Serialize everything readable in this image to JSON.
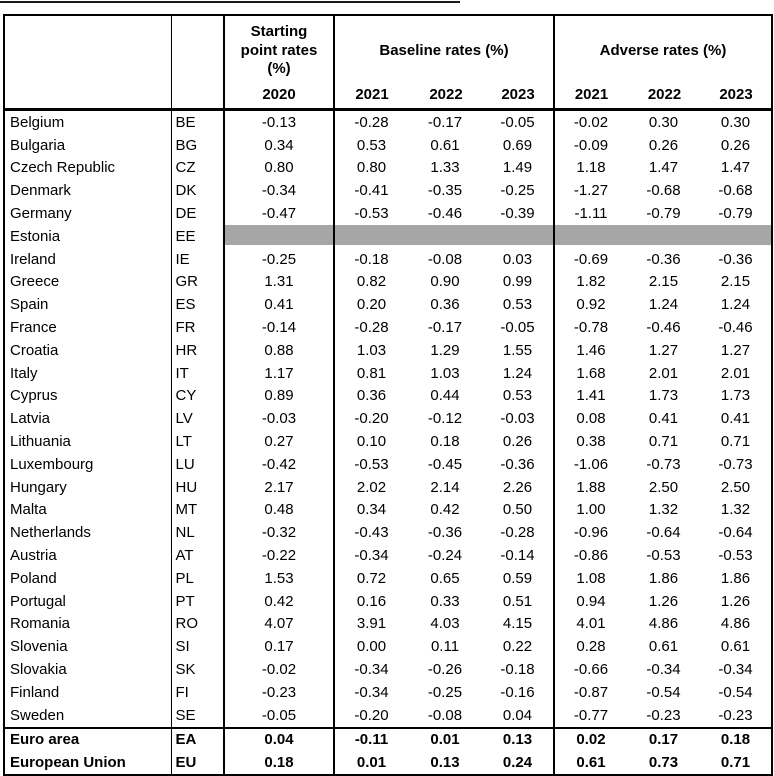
{
  "accent_colors": {
    "border": "#000000",
    "missing_band": "#a6a6a6",
    "background": "#ffffff"
  },
  "table": {
    "header": {
      "country_col": "",
      "code_col": "",
      "groups": [
        {
          "label": "Starting point rates (%)",
          "years": [
            "2020"
          ]
        },
        {
          "label": "Baseline rates (%)",
          "years": [
            "2021",
            "2022",
            "2023"
          ]
        },
        {
          "label": "Adverse rates (%)",
          "years": [
            "2021",
            "2022",
            "2023"
          ]
        }
      ]
    },
    "rows": [
      {
        "country": "Belgium",
        "code": "BE",
        "values": [
          "-0.13",
          "-0.28",
          "-0.17",
          "-0.05",
          "-0.02",
          "0.30",
          "0.30"
        ]
      },
      {
        "country": "Bulgaria",
        "code": "BG",
        "values": [
          "0.34",
          "0.53",
          "0.61",
          "0.69",
          "-0.09",
          "0.26",
          "0.26"
        ]
      },
      {
        "country": "Czech Republic",
        "code": "CZ",
        "values": [
          "0.80",
          "0.80",
          "1.33",
          "1.49",
          "1.18",
          "1.47",
          "1.47"
        ]
      },
      {
        "country": "Denmark",
        "code": "DK",
        "values": [
          "-0.34",
          "-0.41",
          "-0.35",
          "-0.25",
          "-1.27",
          "-0.68",
          "-0.68"
        ]
      },
      {
        "country": "Germany",
        "code": "DE",
        "values": [
          "-0.47",
          "-0.53",
          "-0.46",
          "-0.39",
          "-1.11",
          "-0.79",
          "-0.79"
        ]
      },
      {
        "country": "Estonia",
        "code": "EE",
        "values": [
          "",
          "",
          "",
          "",
          "",
          "",
          ""
        ],
        "missing": true
      },
      {
        "country": "Ireland",
        "code": "IE",
        "values": [
          "-0.25",
          "-0.18",
          "-0.08",
          "0.03",
          "-0.69",
          "-0.36",
          "-0.36"
        ]
      },
      {
        "country": "Greece",
        "code": "GR",
        "values": [
          "1.31",
          "0.82",
          "0.90",
          "0.99",
          "1.82",
          "2.15",
          "2.15"
        ]
      },
      {
        "country": "Spain",
        "code": "ES",
        "values": [
          "0.41",
          "0.20",
          "0.36",
          "0.53",
          "0.92",
          "1.24",
          "1.24"
        ]
      },
      {
        "country": "France",
        "code": "FR",
        "values": [
          "-0.14",
          "-0.28",
          "-0.17",
          "-0.05",
          "-0.78",
          "-0.46",
          "-0.46"
        ]
      },
      {
        "country": "Croatia",
        "code": "HR",
        "values": [
          "0.88",
          "1.03",
          "1.29",
          "1.55",
          "1.46",
          "1.27",
          "1.27"
        ]
      },
      {
        "country": "Italy",
        "code": "IT",
        "values": [
          "1.17",
          "0.81",
          "1.03",
          "1.24",
          "1.68",
          "2.01",
          "2.01"
        ]
      },
      {
        "country": "Cyprus",
        "code": "CY",
        "values": [
          "0.89",
          "0.36",
          "0.44",
          "0.53",
          "1.41",
          "1.73",
          "1.73"
        ]
      },
      {
        "country": "Latvia",
        "code": "LV",
        "values": [
          "-0.03",
          "-0.20",
          "-0.12",
          "-0.03",
          "0.08",
          "0.41",
          "0.41"
        ]
      },
      {
        "country": "Lithuania",
        "code": "LT",
        "values": [
          "0.27",
          "0.10",
          "0.18",
          "0.26",
          "0.38",
          "0.71",
          "0.71"
        ]
      },
      {
        "country": "Luxembourg",
        "code": "LU",
        "values": [
          "-0.42",
          "-0.53",
          "-0.45",
          "-0.36",
          "-1.06",
          "-0.73",
          "-0.73"
        ]
      },
      {
        "country": "Hungary",
        "code": "HU",
        "values": [
          "2.17",
          "2.02",
          "2.14",
          "2.26",
          "1.88",
          "2.50",
          "2.50"
        ]
      },
      {
        "country": "Malta",
        "code": "MT",
        "values": [
          "0.48",
          "0.34",
          "0.42",
          "0.50",
          "1.00",
          "1.32",
          "1.32"
        ]
      },
      {
        "country": "Netherlands",
        "code": "NL",
        "values": [
          "-0.32",
          "-0.43",
          "-0.36",
          "-0.28",
          "-0.96",
          "-0.64",
          "-0.64"
        ]
      },
      {
        "country": "Austria",
        "code": "AT",
        "values": [
          "-0.22",
          "-0.34",
          "-0.24",
          "-0.14",
          "-0.86",
          "-0.53",
          "-0.53"
        ]
      },
      {
        "country": "Poland",
        "code": "PL",
        "values": [
          "1.53",
          "0.72",
          "0.65",
          "0.59",
          "1.08",
          "1.86",
          "1.86"
        ]
      },
      {
        "country": "Portugal",
        "code": "PT",
        "values": [
          "0.42",
          "0.16",
          "0.33",
          "0.51",
          "0.94",
          "1.26",
          "1.26"
        ]
      },
      {
        "country": "Romania",
        "code": "RO",
        "values": [
          "4.07",
          "3.91",
          "4.03",
          "4.15",
          "4.01",
          "4.86",
          "4.86"
        ]
      },
      {
        "country": "Slovenia",
        "code": "SI",
        "values": [
          "0.17",
          "0.00",
          "0.11",
          "0.22",
          "0.28",
          "0.61",
          "0.61"
        ]
      },
      {
        "country": "Slovakia",
        "code": "SK",
        "values": [
          "-0.02",
          "-0.34",
          "-0.26",
          "-0.18",
          "-0.66",
          "-0.34",
          "-0.34"
        ]
      },
      {
        "country": "Finland",
        "code": "FI",
        "values": [
          "-0.23",
          "-0.34",
          "-0.25",
          "-0.16",
          "-0.87",
          "-0.54",
          "-0.54"
        ]
      },
      {
        "country": "Sweden",
        "code": "SE",
        "values": [
          "-0.05",
          "-0.20",
          "-0.08",
          "0.04",
          "-0.77",
          "-0.23",
          "-0.23"
        ]
      },
      {
        "country": "Euro area",
        "code": "EA",
        "values": [
          "0.04",
          "-0.11",
          "0.01",
          "0.13",
          "0.02",
          "0.17",
          "0.18"
        ],
        "bold": true,
        "first_summary": true
      },
      {
        "country": "European Union",
        "code": "EU",
        "values": [
          "0.18",
          "0.01",
          "0.13",
          "0.24",
          "0.61",
          "0.73",
          "0.71"
        ],
        "bold": true
      }
    ]
  },
  "chart_data": {
    "type": "table",
    "columns": [
      "Country",
      "Code",
      "Starting point rates (%) 2020",
      "Baseline rates (%) 2021",
      "Baseline rates (%) 2022",
      "Baseline rates (%) 2023",
      "Adverse rates (%) 2021",
      "Adverse rates (%) 2022",
      "Adverse rates (%) 2023"
    ],
    "rows": [
      [
        "Belgium",
        "BE",
        -0.13,
        -0.28,
        -0.17,
        -0.05,
        -0.02,
        0.3,
        0.3
      ],
      [
        "Bulgaria",
        "BG",
        0.34,
        0.53,
        0.61,
        0.69,
        -0.09,
        0.26,
        0.26
      ],
      [
        "Czech Republic",
        "CZ",
        0.8,
        0.8,
        1.33,
        1.49,
        1.18,
        1.47,
        1.47
      ],
      [
        "Denmark",
        "DK",
        -0.34,
        -0.41,
        -0.35,
        -0.25,
        -1.27,
        -0.68,
        -0.68
      ],
      [
        "Germany",
        "DE",
        -0.47,
        -0.53,
        -0.46,
        -0.39,
        -1.11,
        -0.79,
        -0.79
      ],
      [
        "Estonia",
        "EE",
        null,
        null,
        null,
        null,
        null,
        null,
        null
      ],
      [
        "Ireland",
        "IE",
        -0.25,
        -0.18,
        -0.08,
        0.03,
        -0.69,
        -0.36,
        -0.36
      ],
      [
        "Greece",
        "GR",
        1.31,
        0.82,
        0.9,
        0.99,
        1.82,
        2.15,
        2.15
      ],
      [
        "Spain",
        "ES",
        0.41,
        0.2,
        0.36,
        0.53,
        0.92,
        1.24,
        1.24
      ],
      [
        "France",
        "FR",
        -0.14,
        -0.28,
        -0.17,
        -0.05,
        -0.78,
        -0.46,
        -0.46
      ],
      [
        "Croatia",
        "HR",
        0.88,
        1.03,
        1.29,
        1.55,
        1.46,
        1.27,
        1.27
      ],
      [
        "Italy",
        "IT",
        1.17,
        0.81,
        1.03,
        1.24,
        1.68,
        2.01,
        2.01
      ],
      [
        "Cyprus",
        "CY",
        0.89,
        0.36,
        0.44,
        0.53,
        1.41,
        1.73,
        1.73
      ],
      [
        "Latvia",
        "LV",
        -0.03,
        -0.2,
        -0.12,
        -0.03,
        0.08,
        0.41,
        0.41
      ],
      [
        "Lithuania",
        "LT",
        0.27,
        0.1,
        0.18,
        0.26,
        0.38,
        0.71,
        0.71
      ],
      [
        "Luxembourg",
        "LU",
        -0.42,
        -0.53,
        -0.45,
        -0.36,
        -1.06,
        -0.73,
        -0.73
      ],
      [
        "Hungary",
        "HU",
        2.17,
        2.02,
        2.14,
        2.26,
        1.88,
        2.5,
        2.5
      ],
      [
        "Malta",
        "MT",
        0.48,
        0.34,
        0.42,
        0.5,
        1.0,
        1.32,
        1.32
      ],
      [
        "Netherlands",
        "NL",
        -0.32,
        -0.43,
        -0.36,
        -0.28,
        -0.96,
        -0.64,
        -0.64
      ],
      [
        "Austria",
        "AT",
        -0.22,
        -0.34,
        -0.24,
        -0.14,
        -0.86,
        -0.53,
        -0.53
      ],
      [
        "Poland",
        "PL",
        1.53,
        0.72,
        0.65,
        0.59,
        1.08,
        1.86,
        1.86
      ],
      [
        "Portugal",
        "PT",
        0.42,
        0.16,
        0.33,
        0.51,
        0.94,
        1.26,
        1.26
      ],
      [
        "Romania",
        "RO",
        4.07,
        3.91,
        4.03,
        4.15,
        4.01,
        4.86,
        4.86
      ],
      [
        "Slovenia",
        "SI",
        0.17,
        0.0,
        0.11,
        0.22,
        0.28,
        0.61,
        0.61
      ],
      [
        "Slovakia",
        "SK",
        -0.02,
        -0.34,
        -0.26,
        -0.18,
        -0.66,
        -0.34,
        -0.34
      ],
      [
        "Finland",
        "FI",
        -0.23,
        -0.34,
        -0.25,
        -0.16,
        -0.87,
        -0.54,
        -0.54
      ],
      [
        "Sweden",
        "SE",
        -0.05,
        -0.2,
        -0.08,
        0.04,
        -0.77,
        -0.23,
        -0.23
      ],
      [
        "Euro area",
        "EA",
        0.04,
        -0.11,
        0.01,
        0.13,
        0.02,
        0.17,
        0.18
      ],
      [
        "European Union",
        "EU",
        0.18,
        0.01,
        0.13,
        0.24,
        0.61,
        0.73,
        0.71
      ]
    ]
  }
}
